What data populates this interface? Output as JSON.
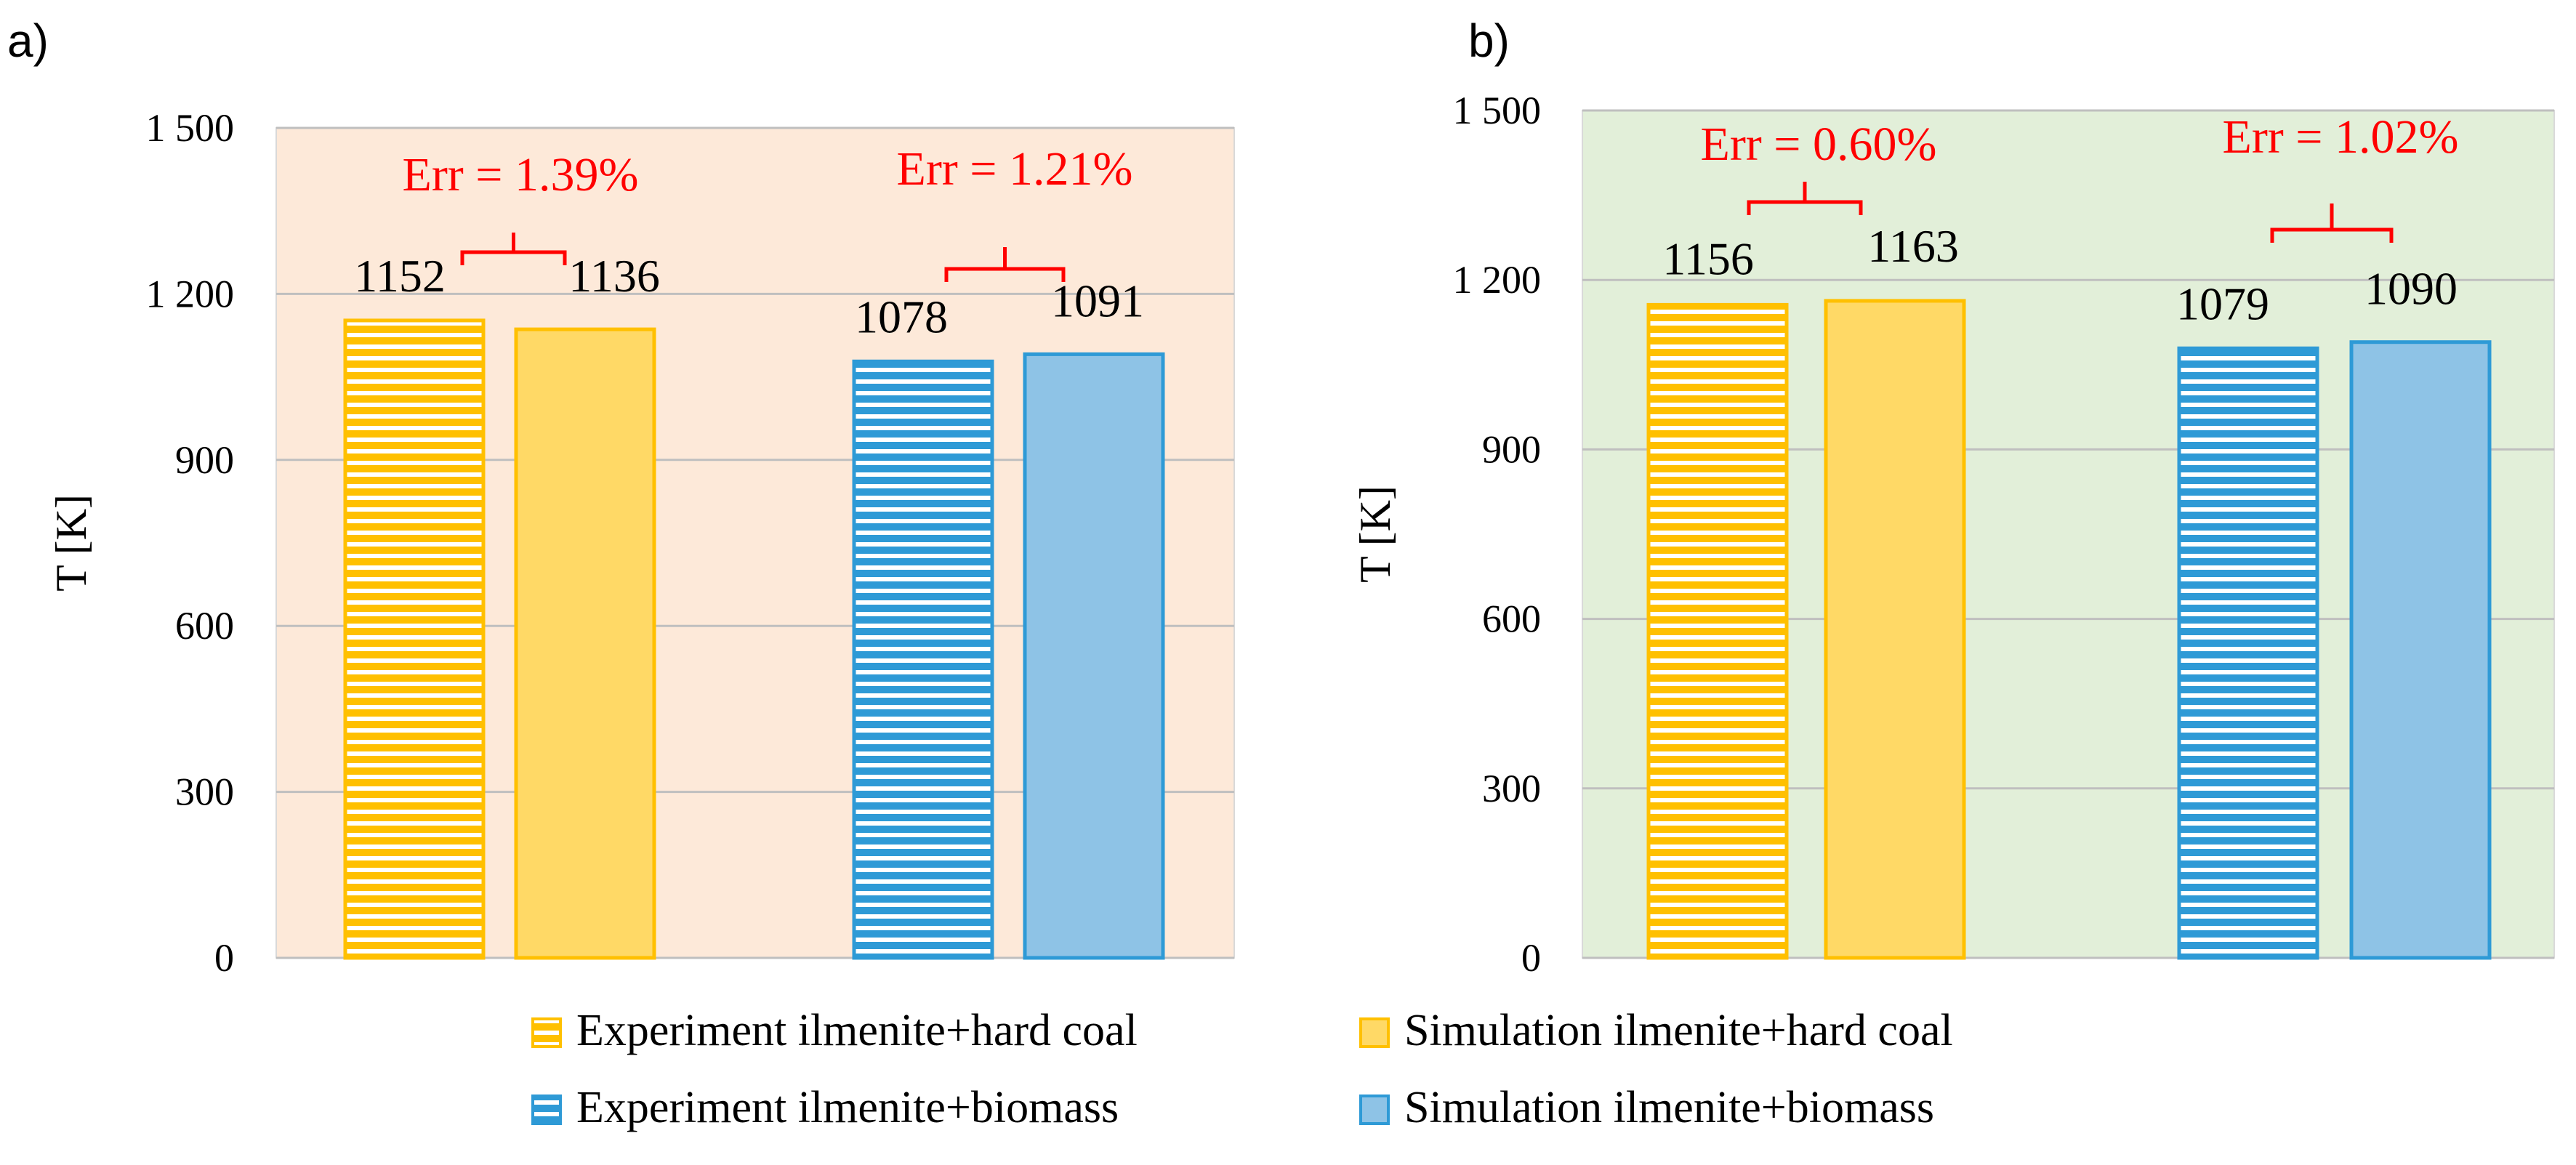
{
  "legend_entries": [
    {
      "label": "Experiment ilmenite+hard coal",
      "color": "#FFC000",
      "pattern": "striped"
    },
    {
      "label": "Simulation ilmenite+hard coal",
      "color": "#FFD966",
      "pattern": "solid"
    },
    {
      "label": "Experiment ilmenite+biomass",
      "color": "#2E9AD6",
      "pattern": "striped"
    },
    {
      "label": "Simulation ilmenite+biomass",
      "color": "#8EC3E6",
      "pattern": "solid"
    }
  ],
  "colors": {
    "panel_a_background": "#FDE9D9",
    "panel_b_background": "#E2EFD9",
    "gridline": "#BFBFBF",
    "error_annotation": "#FF0000",
    "hard_coal_outline": "#FFC000",
    "biomass_outline": "#2E9AD6"
  },
  "chart_data": [
    {
      "panel": "a)",
      "type": "bar",
      "ylabel": "T [K]",
      "ylim": [
        0,
        1500
      ],
      "yticks": [
        0,
        300,
        600,
        900,
        1200,
        1500
      ],
      "ytick_labels": [
        "0",
        "300",
        "600",
        "900",
        "1 200",
        "1 500"
      ],
      "grid": true,
      "series": [
        {
          "name": "Experiment ilmenite+hard coal",
          "values": [
            1152
          ]
        },
        {
          "name": "Simulation ilmenite+hard coal",
          "values": [
            1136
          ]
        },
        {
          "name": "Experiment ilmenite+biomass",
          "values": [
            1078
          ]
        },
        {
          "name": "Simulation ilmenite+biomass",
          "values": [
            1091
          ]
        }
      ],
      "data_labels": [
        "1152",
        "1136",
        "1078",
        "1091"
      ],
      "annotations": [
        "Err = 1.39%",
        "Err = 1.21%"
      ]
    },
    {
      "panel": "b)",
      "type": "bar",
      "ylabel": "T [K]",
      "ylim": [
        0,
        1500
      ],
      "yticks": [
        0,
        300,
        600,
        900,
        1200,
        1500
      ],
      "ytick_labels": [
        "0",
        "300",
        "600",
        "900",
        "1 200",
        "1 500"
      ],
      "grid": true,
      "series": [
        {
          "name": "Experiment ilmenite+hard coal",
          "values": [
            1156
          ]
        },
        {
          "name": "Simulation ilmenite+hard coal",
          "values": [
            1163
          ]
        },
        {
          "name": "Experiment ilmenite+biomass",
          "values": [
            1079
          ]
        },
        {
          "name": "Simulation ilmenite+biomass",
          "values": [
            1090
          ]
        }
      ],
      "data_labels": [
        "1156",
        "1163",
        "1079",
        "1090"
      ],
      "annotations": [
        "Err = 0.60%",
        "Err = 1.02%"
      ]
    }
  ]
}
